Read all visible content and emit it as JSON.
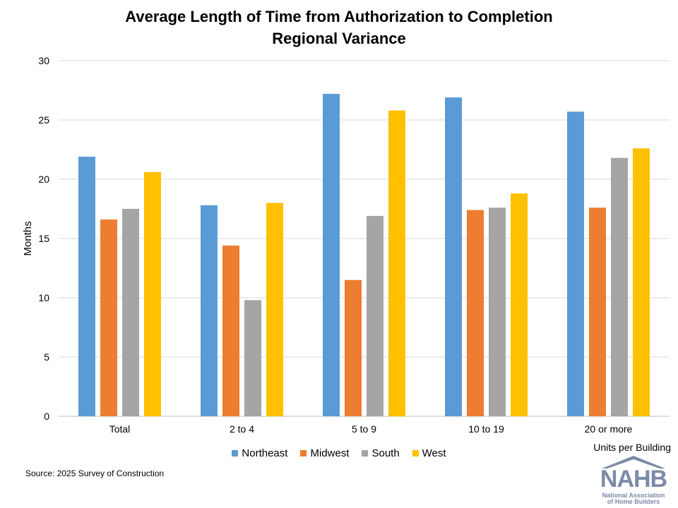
{
  "chart_data": {
    "type": "bar",
    "title": "Average Length of Time from Authorization to Completion",
    "subtitle": "Regional Variance",
    "xlabel": "Units per Building",
    "ylabel": "Months",
    "ylim": [
      0,
      30
    ],
    "yticks": [
      "0",
      "5",
      "10",
      "15",
      "20",
      "25",
      "30"
    ],
    "grid": true,
    "legend_position": "bottom",
    "categories": [
      "Total",
      "2 to 4",
      "5 to 9",
      "10 to 19",
      "20 or more"
    ],
    "series": [
      {
        "name": "Northeast",
        "color": "#5b9bd5",
        "values": [
          21.9,
          17.8,
          27.2,
          26.9,
          25.7
        ]
      },
      {
        "name": "Midwest",
        "color": "#ed7d31",
        "values": [
          16.6,
          14.4,
          11.5,
          17.4,
          17.6
        ]
      },
      {
        "name": "South",
        "color": "#a5a5a5",
        "values": [
          17.5,
          9.8,
          16.9,
          17.6,
          21.8
        ]
      },
      {
        "name": "West",
        "color": "#ffc000",
        "values": [
          20.6,
          18.0,
          25.8,
          18.8,
          22.6
        ]
      }
    ]
  },
  "source": "Source: 2025 Survey of Construction",
  "logo": {
    "text": "NAHB",
    "line1": "National Association",
    "line2": "of Home Builders",
    "color": "#7d8aa8"
  }
}
